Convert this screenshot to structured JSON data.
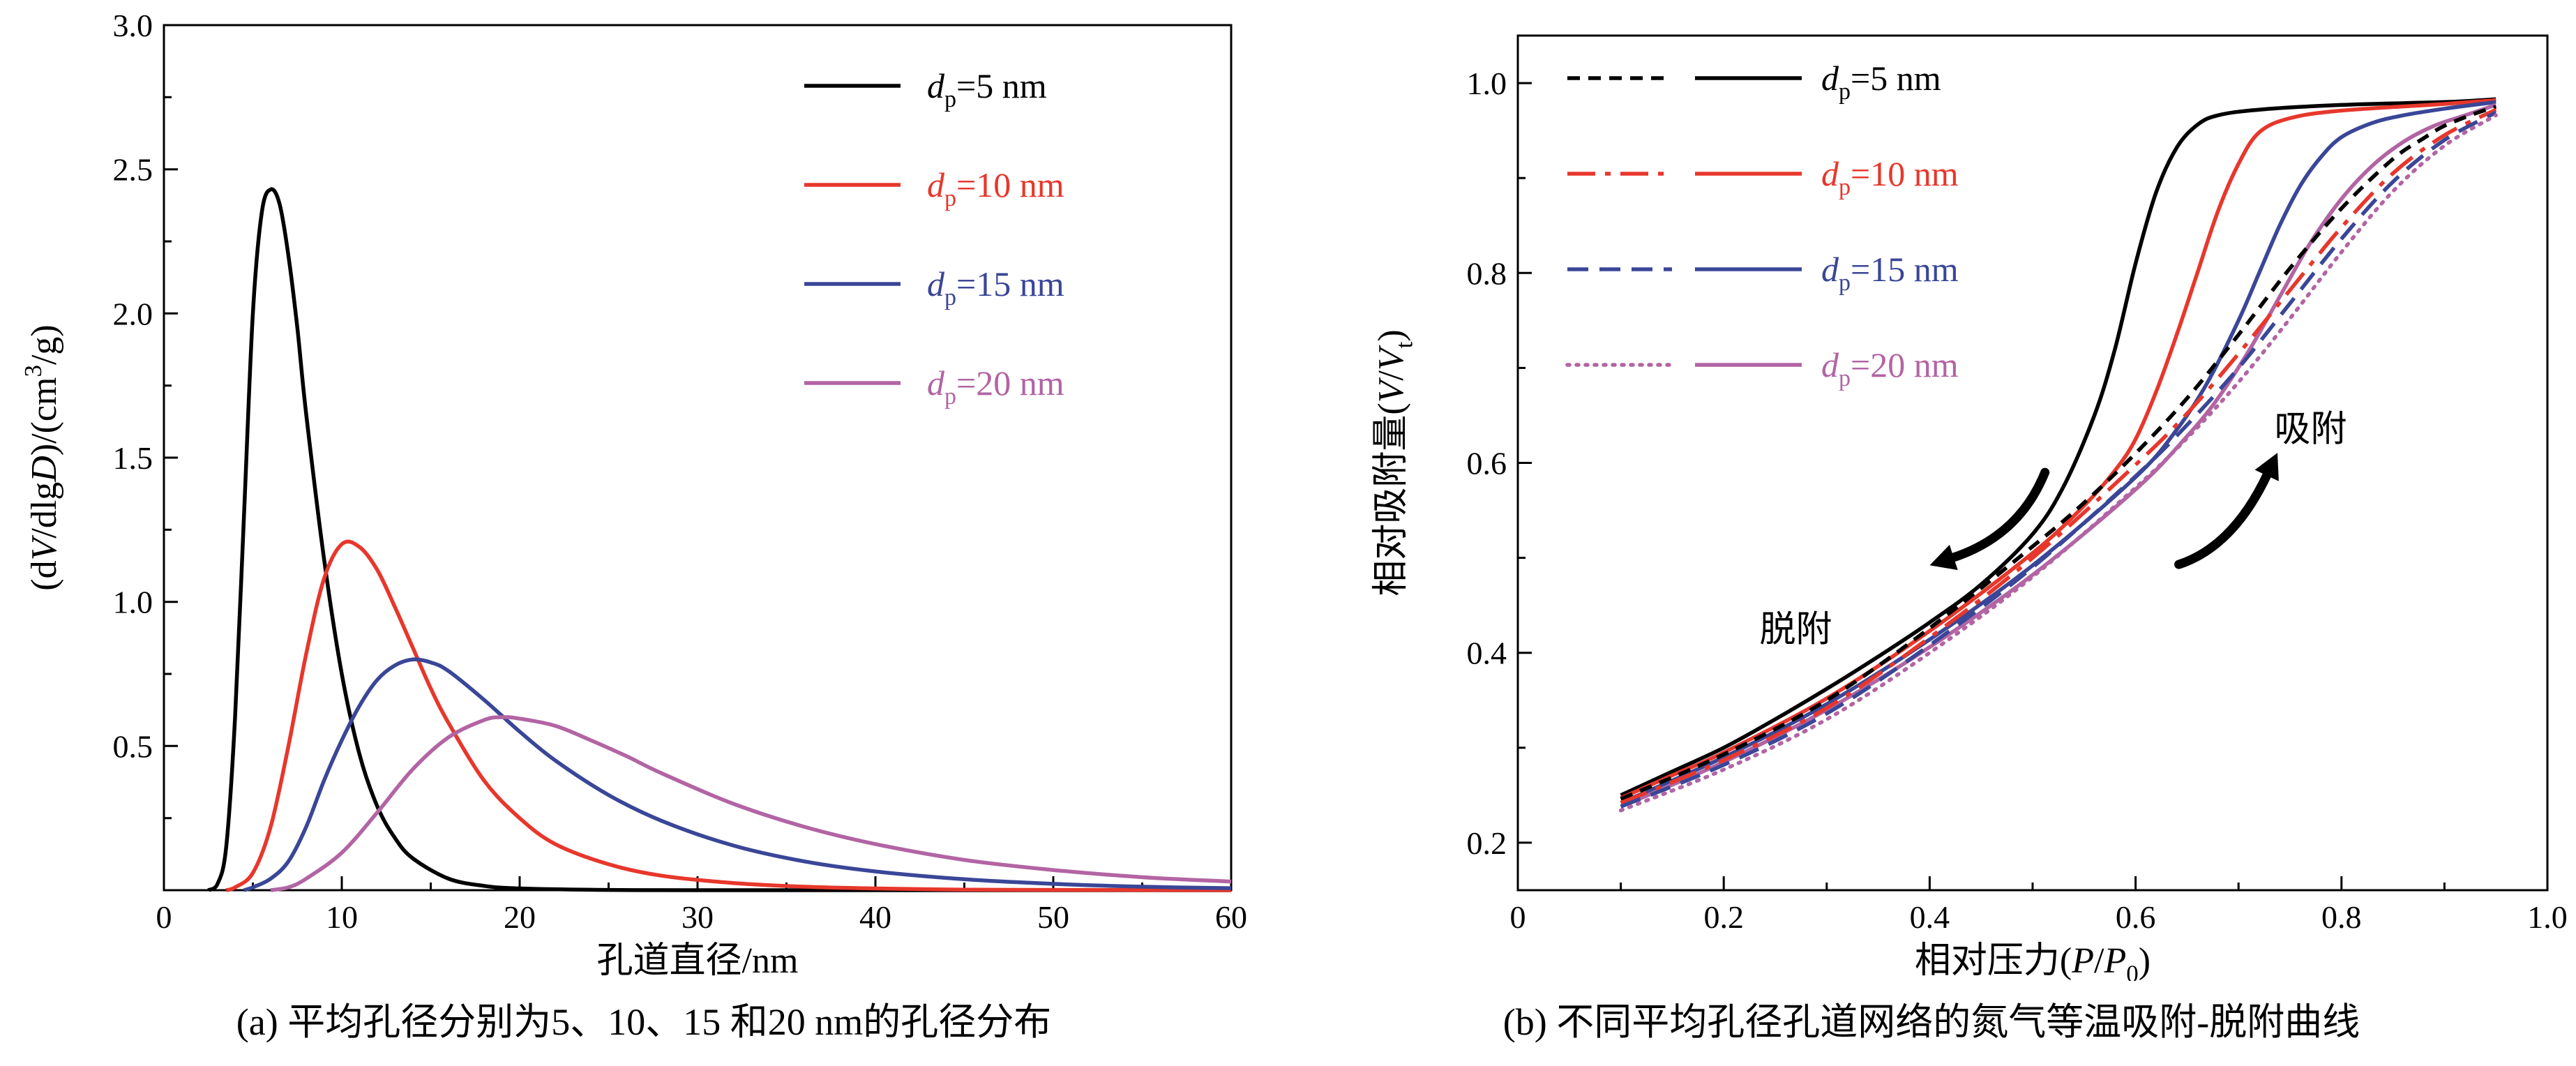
{
  "colors": {
    "black": "#000000",
    "red": "#e7372c",
    "blue": "#3a4697",
    "purple": "#b264a3",
    "axis": "#000000",
    "background": "#ffffff"
  },
  "chart_data": [
    {
      "id": "chart-a",
      "type": "line",
      "title": "",
      "xlabel": "孔道直径/nm",
      "ylabel": "(dV/dlgD)/(cm3/g)",
      "xlabel_segments": [
        {
          "t": "孔道直径/nm"
        }
      ],
      "ylabel_segments": [
        {
          "t": "(d"
        },
        {
          "t": "V",
          "i": true
        },
        {
          "t": "/dlg"
        },
        {
          "t": "D",
          "i": true
        },
        {
          "t": ")/(cm"
        },
        {
          "t": "3",
          "sup": true
        },
        {
          "t": "/g)"
        }
      ],
      "xlim": [
        0,
        60
      ],
      "ylim": [
        0,
        3.0
      ],
      "xticks": [
        0,
        10,
        20,
        30,
        40,
        50,
        60
      ],
      "xtick_labels": [
        "0",
        "10",
        "20",
        "30",
        "40",
        "50",
        "60"
      ],
      "yticks": [
        0.5,
        1.0,
        1.5,
        2.0,
        2.5,
        3.0
      ],
      "ytick_labels": [
        "0.5",
        "1.0",
        "1.5",
        "2.0",
        "2.5",
        "3.0"
      ],
      "grid": false,
      "legend_position": "upper right",
      "series": [
        {
          "name": "dp5",
          "label_segments": [
            {
              "t": "d",
              "i": true
            },
            {
              "t": "p",
              "sub": true
            },
            {
              "t": "=5 nm"
            }
          ],
          "color": "#000000",
          "dash": null,
          "x": [
            2.5,
            3,
            3.5,
            4,
            4.5,
            5,
            5.5,
            6,
            6.5,
            7,
            7.5,
            8,
            9,
            10,
            11,
            12,
            13,
            14,
            16,
            18,
            20,
            25,
            30,
            40,
            50,
            60
          ],
          "y": [
            0,
            0.02,
            0.15,
            0.6,
            1.3,
            2.0,
            2.35,
            2.43,
            2.38,
            2.2,
            1.95,
            1.65,
            1.15,
            0.75,
            0.47,
            0.29,
            0.18,
            0.11,
            0.04,
            0.015,
            0.006,
            0.001,
            0,
            0,
            0,
            0
          ]
        },
        {
          "name": "dp10",
          "label_segments": [
            {
              "t": "d",
              "i": true
            },
            {
              "t": "p",
              "sub": true
            },
            {
              "t": "=10 nm"
            }
          ],
          "color": "#e7372c",
          "dash": null,
          "x": [
            3.5,
            4,
            5,
            6,
            7,
            8,
            9,
            10,
            11,
            12,
            13,
            14,
            15,
            16,
            18,
            20,
            22,
            25,
            28,
            32,
            36,
            40,
            45,
            50,
            60
          ],
          "y": [
            0,
            0.01,
            0.06,
            0.22,
            0.5,
            0.82,
            1.08,
            1.2,
            1.19,
            1.11,
            0.98,
            0.84,
            0.7,
            0.58,
            0.38,
            0.25,
            0.16,
            0.09,
            0.05,
            0.025,
            0.012,
            0.006,
            0.002,
            0.001,
            0
          ]
        },
        {
          "name": "dp15",
          "label_segments": [
            {
              "t": "d",
              "i": true
            },
            {
              "t": "p",
              "sub": true
            },
            {
              "t": "=15 nm"
            }
          ],
          "color": "#3a4697",
          "dash": null,
          "x": [
            4.5,
            5,
            6,
            7,
            8,
            9,
            10,
            11,
            12,
            13,
            14,
            15,
            16,
            18,
            20,
            22,
            25,
            28,
            32,
            36,
            40,
            45,
            50,
            55,
            60
          ],
          "y": [
            0,
            0.01,
            0.04,
            0.1,
            0.22,
            0.38,
            0.52,
            0.64,
            0.73,
            0.78,
            0.8,
            0.79,
            0.76,
            0.66,
            0.55,
            0.45,
            0.33,
            0.24,
            0.155,
            0.1,
            0.065,
            0.038,
            0.022,
            0.012,
            0.007
          ]
        },
        {
          "name": "dp20",
          "label_segments": [
            {
              "t": "d",
              "i": true
            },
            {
              "t": "p",
              "sub": true
            },
            {
              "t": "=20 nm"
            }
          ],
          "color": "#b264a3",
          "dash": null,
          "x": [
            6,
            7,
            8,
            10,
            12,
            14,
            16,
            18,
            19,
            20,
            22,
            24,
            26,
            28,
            32,
            36,
            40,
            45,
            50,
            55,
            60
          ],
          "y": [
            0,
            0.01,
            0.04,
            0.13,
            0.27,
            0.42,
            0.53,
            0.59,
            0.6,
            0.595,
            0.57,
            0.52,
            0.465,
            0.405,
            0.3,
            0.22,
            0.16,
            0.105,
            0.07,
            0.045,
            0.03
          ]
        }
      ],
      "caption": "(a) 平均孔径分别为5、10、15 和20 nm的孔径分布"
    },
    {
      "id": "chart-b",
      "type": "line",
      "title": "",
      "xlabel": "相对压力(P/P0)",
      "ylabel": "相对吸附量(V/Vt)",
      "xlabel_segments": [
        {
          "t": "相对压力("
        },
        {
          "t": "P",
          "i": true
        },
        {
          "t": "/"
        },
        {
          "t": "P",
          "i": true
        },
        {
          "t": "0",
          "sub": true
        },
        {
          "t": ")"
        }
      ],
      "ylabel_segments": [
        {
          "t": "相对吸附量("
        },
        {
          "t": "V",
          "i": true
        },
        {
          "t": "/"
        },
        {
          "t": "V",
          "i": true
        },
        {
          "t": "t",
          "sub": true
        },
        {
          "t": ")"
        }
      ],
      "xlim": [
        0,
        1.0
      ],
      "ylim": [
        0.15,
        1.05
      ],
      "xticks": [
        0,
        0.2,
        0.4,
        0.6,
        0.8,
        1.0
      ],
      "xtick_labels": [
        "0",
        "0.2",
        "0.4",
        "0.6",
        "0.8",
        "1.0"
      ],
      "yticks": [
        0.2,
        0.4,
        0.6,
        0.8,
        1.0
      ],
      "ytick_labels": [
        "0.2",
        "0.4",
        "0.6",
        "0.8",
        "1.0"
      ],
      "grid": false,
      "legend_position": "upper left",
      "legend": [
        {
          "label_segments": [
            {
              "t": "d",
              "i": true
            },
            {
              "t": "p",
              "sub": true
            },
            {
              "t": "=5 nm"
            }
          ],
          "color": "#000000",
          "dash": "18 12"
        },
        {
          "label_segments": [
            {
              "t": "d",
              "i": true
            },
            {
              "t": "p",
              "sub": true
            },
            {
              "t": "=10 nm"
            }
          ],
          "color": "#e7372c",
          "dash": "40 14 8 14"
        },
        {
          "label_segments": [
            {
              "t": "d",
              "i": true
            },
            {
              "t": "p",
              "sub": true
            },
            {
              "t": "=15 nm"
            }
          ],
          "color": "#3a4697",
          "dash": "30 16"
        },
        {
          "label_segments": [
            {
              "t": "d",
              "i": true
            },
            {
              "t": "p",
              "sub": true
            },
            {
              "t": "=20 nm"
            }
          ],
          "color": "#b264a3",
          "dash": "3 10"
        }
      ],
      "series": [
        {
          "name": "dp5-desorption",
          "color": "#000000",
          "dash": null,
          "x": [
            0.1,
            0.15,
            0.2,
            0.25,
            0.3,
            0.35,
            0.4,
            0.45,
            0.5,
            0.53,
            0.56,
            0.58,
            0.6,
            0.62,
            0.64,
            0.66,
            0.68,
            0.72,
            0.8,
            0.9,
            0.95
          ],
          "y": [
            0.25,
            0.275,
            0.3,
            0.33,
            0.362,
            0.396,
            0.432,
            0.472,
            0.525,
            0.575,
            0.65,
            0.72,
            0.81,
            0.885,
            0.932,
            0.956,
            0.966,
            0.972,
            0.977,
            0.98,
            0.983
          ]
        },
        {
          "name": "dp10-desorption",
          "color": "#e7372c",
          "dash": null,
          "x": [
            0.1,
            0.15,
            0.2,
            0.3,
            0.4,
            0.5,
            0.55,
            0.58,
            0.6,
            0.62,
            0.64,
            0.66,
            0.68,
            0.7,
            0.72,
            0.75,
            0.8,
            0.9,
            0.95
          ],
          "y": [
            0.247,
            0.271,
            0.295,
            0.352,
            0.423,
            0.505,
            0.555,
            0.592,
            0.625,
            0.675,
            0.735,
            0.8,
            0.865,
            0.915,
            0.948,
            0.963,
            0.971,
            0.978,
            0.982
          ]
        },
        {
          "name": "dp15-desorption",
          "color": "#3a4697",
          "dash": null,
          "x": [
            0.1,
            0.2,
            0.3,
            0.4,
            0.5,
            0.6,
            0.64,
            0.67,
            0.7,
            0.72,
            0.74,
            0.76,
            0.78,
            0.8,
            0.83,
            0.86,
            0.9,
            0.95
          ],
          "y": [
            0.242,
            0.29,
            0.346,
            0.414,
            0.492,
            0.585,
            0.635,
            0.685,
            0.75,
            0.8,
            0.85,
            0.892,
            0.922,
            0.943,
            0.958,
            0.966,
            0.973,
            0.98
          ]
        },
        {
          "name": "dp20-desorption",
          "color": "#b264a3",
          "dash": null,
          "x": [
            0.1,
            0.2,
            0.3,
            0.4,
            0.5,
            0.6,
            0.65,
            0.68,
            0.71,
            0.74,
            0.77,
            0.8,
            0.83,
            0.86,
            0.89,
            0.92,
            0.95
          ],
          "y": [
            0.238,
            0.285,
            0.34,
            0.406,
            0.482,
            0.572,
            0.628,
            0.668,
            0.718,
            0.775,
            0.832,
            0.878,
            0.913,
            0.938,
            0.955,
            0.966,
            0.977
          ]
        },
        {
          "name": "dp5-adsorption",
          "color": "#000000",
          "dash": "18 12",
          "x": [
            0.1,
            0.2,
            0.3,
            0.4,
            0.5,
            0.55,
            0.6,
            0.65,
            0.7,
            0.75,
            0.8,
            0.85,
            0.88,
            0.9,
            0.93,
            0.95
          ],
          "y": [
            0.246,
            0.293,
            0.35,
            0.426,
            0.512,
            0.558,
            0.61,
            0.668,
            0.735,
            0.805,
            0.868,
            0.92,
            0.942,
            0.955,
            0.968,
            0.975
          ]
        },
        {
          "name": "dp10-adsorption",
          "color": "#e7372c",
          "dash": "40 14 8 14",
          "x": [
            0.1,
            0.2,
            0.3,
            0.4,
            0.5,
            0.6,
            0.65,
            0.7,
            0.75,
            0.8,
            0.85,
            0.9,
            0.95
          ],
          "y": [
            0.242,
            0.287,
            0.342,
            0.416,
            0.5,
            0.598,
            0.652,
            0.715,
            0.782,
            0.848,
            0.905,
            0.945,
            0.972
          ]
        },
        {
          "name": "dp15-adsorption",
          "color": "#3a4697",
          "dash": "30 16",
          "x": [
            0.1,
            0.2,
            0.3,
            0.4,
            0.5,
            0.6,
            0.65,
            0.7,
            0.75,
            0.8,
            0.85,
            0.9,
            0.95
          ],
          "y": [
            0.238,
            0.282,
            0.336,
            0.408,
            0.49,
            0.586,
            0.64,
            0.7,
            0.768,
            0.836,
            0.896,
            0.94,
            0.969
          ]
        },
        {
          "name": "dp20-adsorption",
          "color": "#b264a3",
          "dash": "3 10",
          "x": [
            0.1,
            0.2,
            0.3,
            0.4,
            0.5,
            0.6,
            0.65,
            0.7,
            0.75,
            0.8,
            0.85,
            0.9,
            0.95
          ],
          "y": [
            0.234,
            0.277,
            0.33,
            0.4,
            0.48,
            0.574,
            0.626,
            0.685,
            0.752,
            0.822,
            0.886,
            0.934,
            0.966
          ]
        }
      ],
      "annotations": [
        {
          "name": "desorption-label",
          "text": "脱附",
          "x": 0.27,
          "y": 0.425
        },
        {
          "name": "adsorption-label",
          "text": "吸附",
          "x": 0.77,
          "y": 0.636
        }
      ],
      "arrows": [
        {
          "name": "desorption-arrow",
          "from": [
            0.512,
            0.59
          ],
          "ctrl": [
            0.487,
            0.523
          ],
          "to": [
            0.422,
            0.5
          ]
        },
        {
          "name": "adsorption-arrow",
          "from": [
            0.642,
            0.493
          ],
          "ctrl": [
            0.695,
            0.512
          ],
          "to": [
            0.728,
            0.588
          ]
        }
      ],
      "caption": "(b) 不同平均孔径孔道网络的氮气等温吸附-脱附曲线"
    }
  ]
}
